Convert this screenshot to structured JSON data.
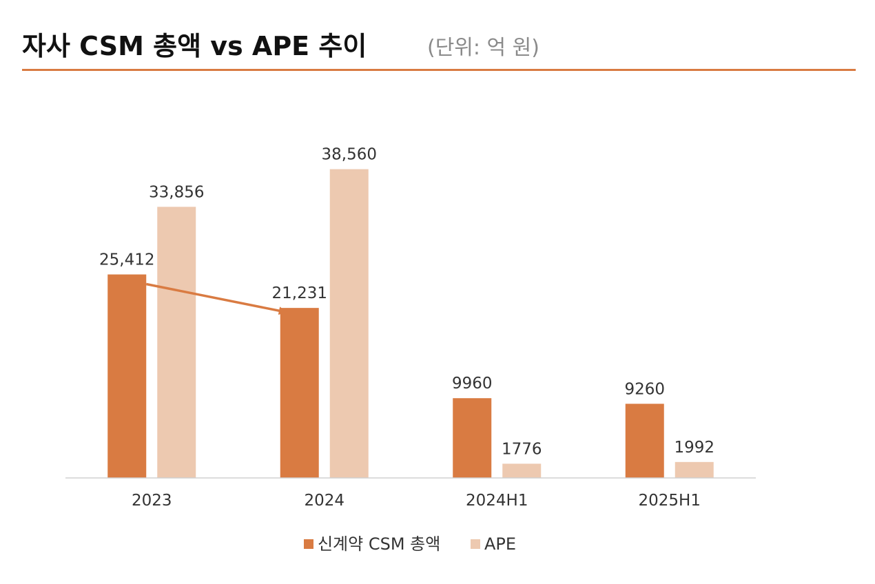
{
  "header": {
    "title": "자사 CSM 총액 vs APE 추이",
    "unit": "(단위: 억 원)"
  },
  "colors": {
    "accent": "#D97B42",
    "csm": "#D97B42",
    "ape": "#EDC9B0",
    "axis": "#D0D0D0"
  },
  "chart_data": {
    "type": "bar",
    "categories": [
      "2023",
      "2024",
      "2024H1",
      "2025H1"
    ],
    "series": [
      {
        "name": "신계약 CSM 총액",
        "values": [
          25412,
          21231,
          9960,
          9260
        ],
        "labels": [
          "25,412",
          "21,231",
          "9960",
          "9260"
        ]
      },
      {
        "name": "APE",
        "values": [
          33856,
          38560,
          1776,
          1992
        ],
        "labels": [
          "33,856",
          "38,560",
          "1776",
          "1992"
        ]
      }
    ],
    "title": "자사 CSM 총액 vs APE 추이",
    "xlabel": "",
    "ylabel": "",
    "ylim": [
      0,
      43000
    ],
    "grid": false,
    "legend": "bottom",
    "annotations": [
      {
        "type": "arrow",
        "from": {
          "category": "2023",
          "series": 0
        },
        "to": {
          "category": "2024",
          "series": 0
        }
      }
    ]
  }
}
